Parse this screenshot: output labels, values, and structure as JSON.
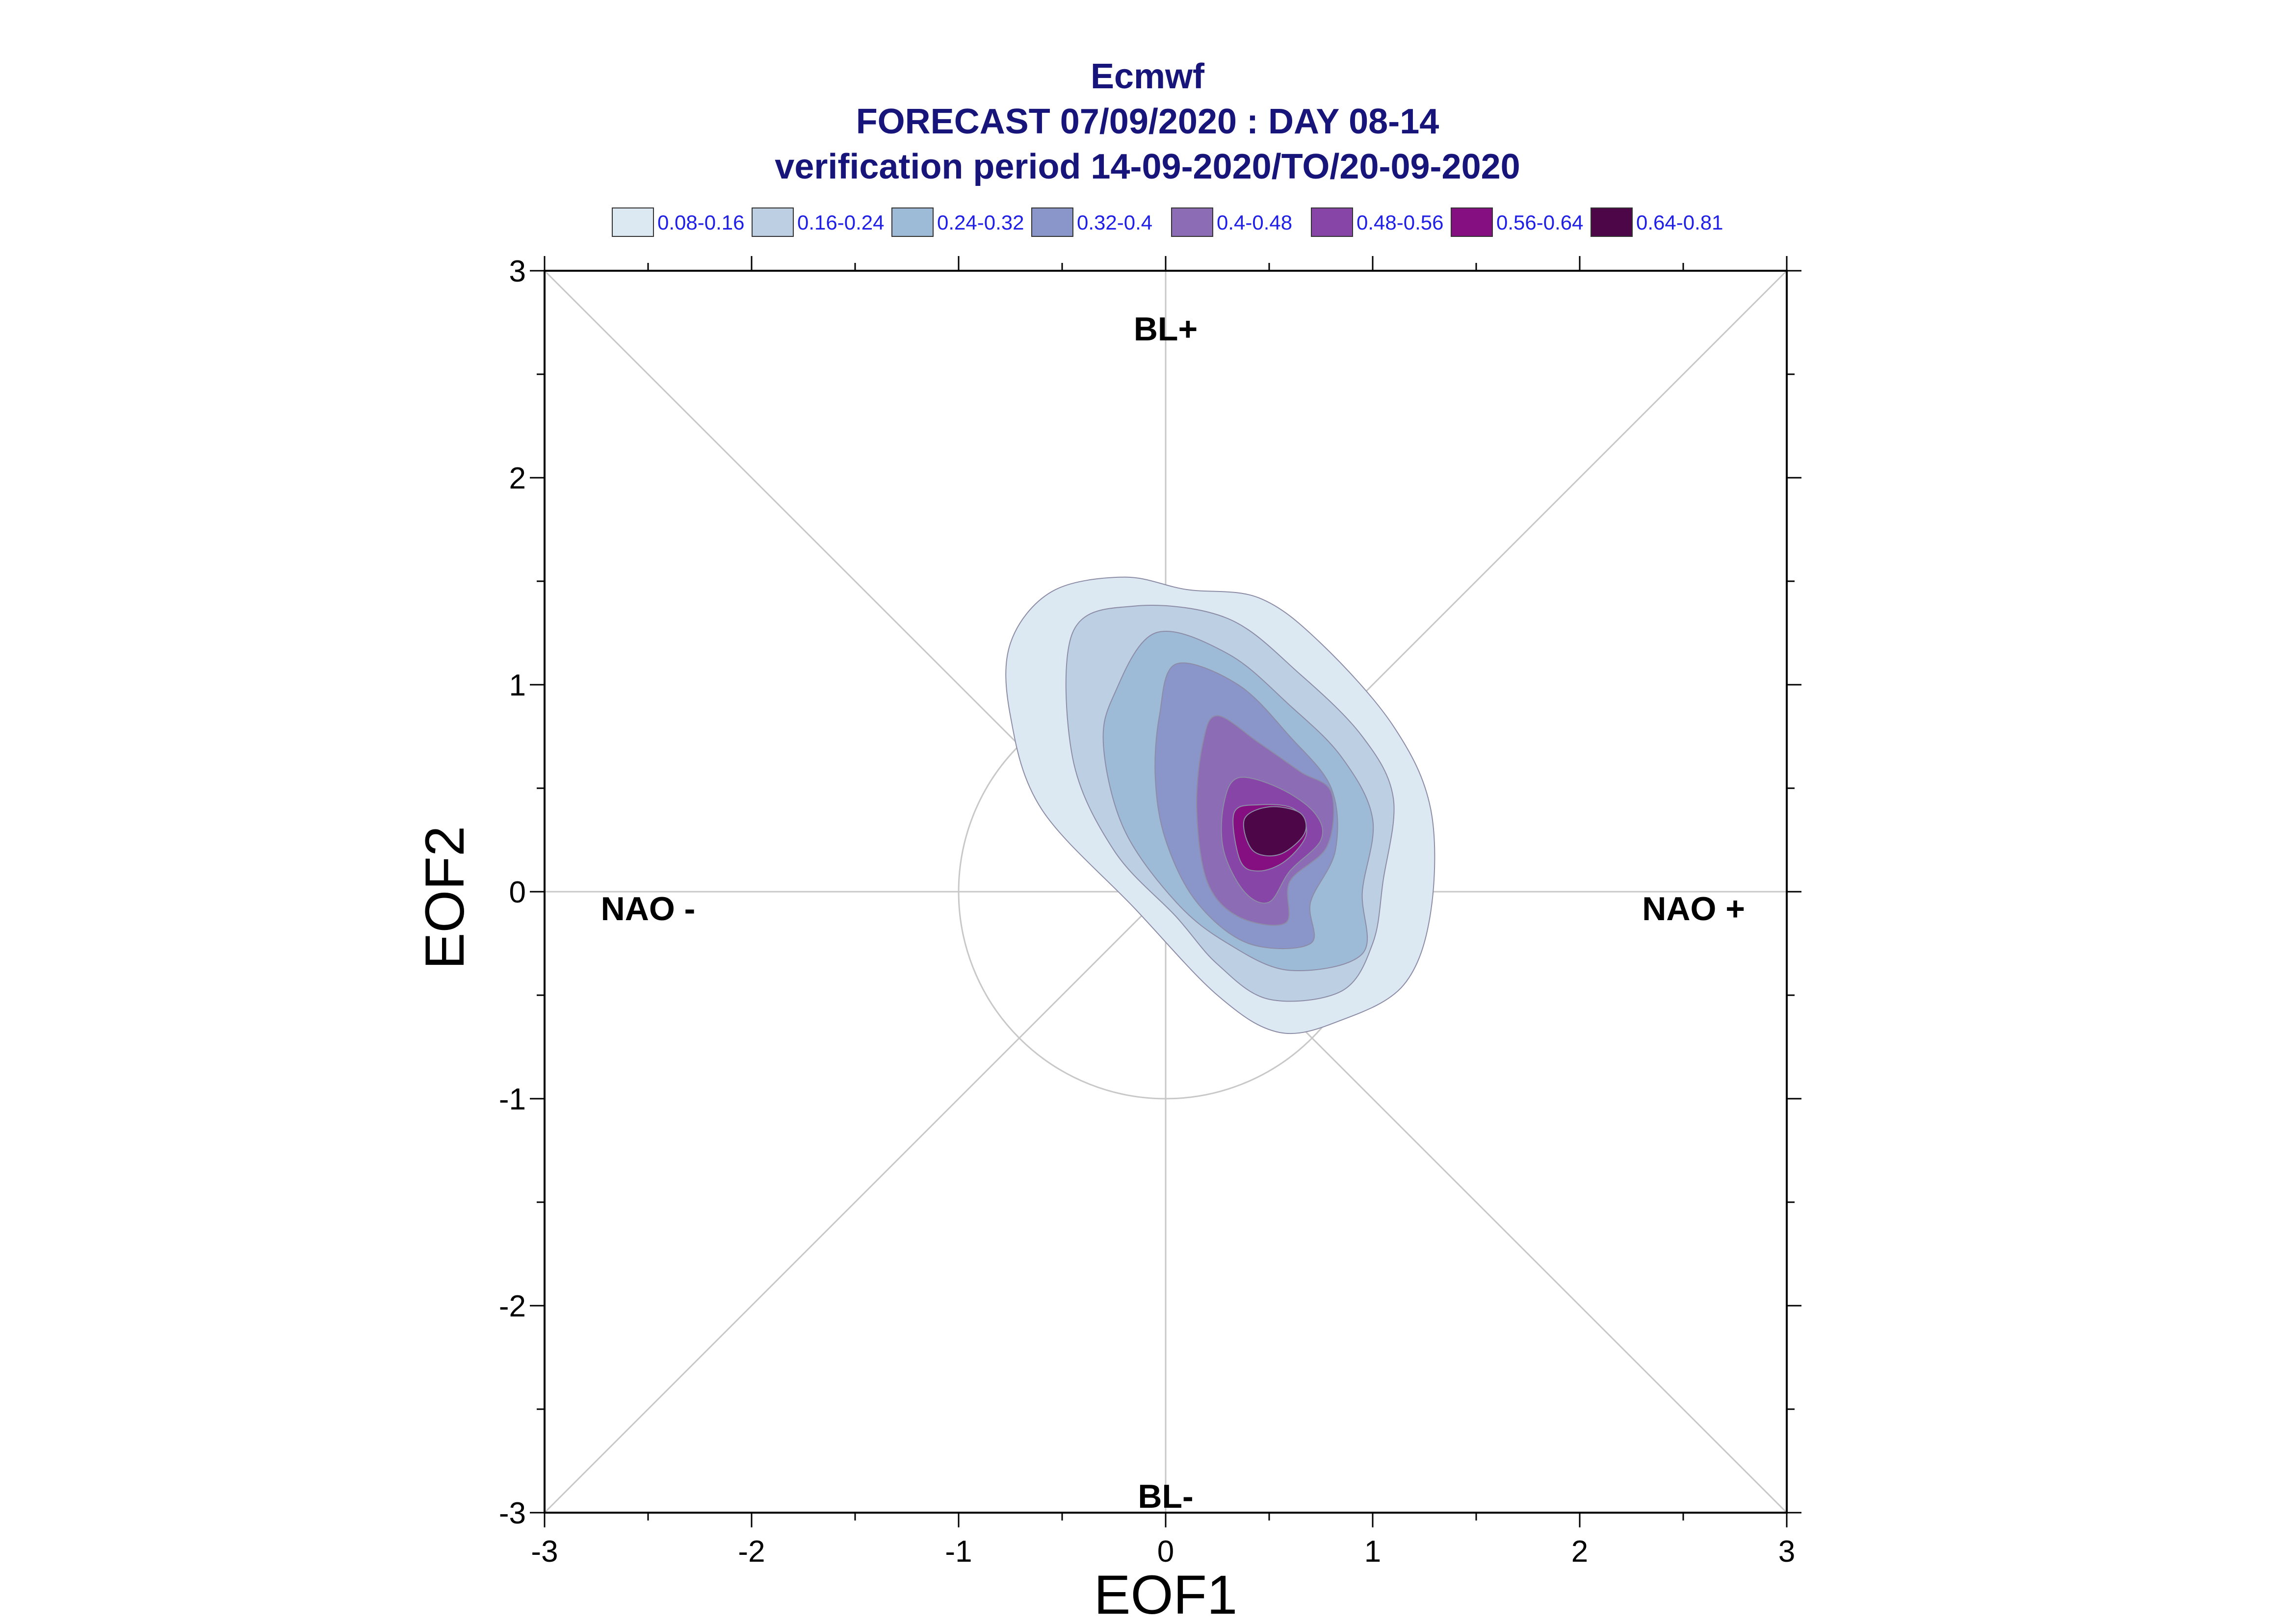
{
  "chart_data": {
    "type": "contour",
    "title": [
      "Ecmwf",
      "FORECAST 07/09/2020 : DAY 08-14",
      "verification period 14-09-2020/TO/20-09-2020"
    ],
    "xlabel": "EOF1",
    "ylabel": "EOF2",
    "xlim": [
      -3,
      3
    ],
    "ylim": [
      -3,
      3
    ],
    "xticks": [
      -3,
      -2,
      -1,
      0,
      1,
      2,
      3
    ],
    "yticks": [
      -3,
      -2,
      -1,
      0,
      1,
      2,
      3
    ],
    "grid": "diagonals, axes through origin, unit circle",
    "legend_position": "top",
    "regime_labels": [
      {
        "text": "BL+",
        "x": 0.0,
        "y": 2.72
      },
      {
        "text": "BL-",
        "x": 0.0,
        "y": -2.92
      },
      {
        "text": "NAO -",
        "x": -2.5,
        "y": -0.08
      },
      {
        "text": "NAO +",
        "x": 2.55,
        "y": -0.08
      }
    ],
    "levels": [
      {
        "label": "0.08-0.16",
        "color": "#dde9f2"
      },
      {
        "label": "0.16-0.24",
        "color": "#bdd0e3"
      },
      {
        "label": "0.24-0.32",
        "color": "#9dbad7"
      },
      {
        "label": "0.32-0.4",
        "color": "#8a95c9"
      },
      {
        "label": "0.4-0.48",
        "color": "#8c6db5"
      },
      {
        "label": "0.48-0.56",
        "color": "#8745a7"
      },
      {
        "label": "0.56-0.64",
        "color": "#850f80"
      },
      {
        "label": "0.64-0.81",
        "color": "#4d0748"
      }
    ],
    "contours": [
      [
        [
          -0.75,
          1.2
        ],
        [
          -0.55,
          1.45
        ],
        [
          -0.2,
          1.52
        ],
        [
          0.1,
          1.46
        ],
        [
          0.45,
          1.42
        ],
        [
          0.75,
          1.2
        ],
        [
          1.1,
          0.8
        ],
        [
          1.28,
          0.4
        ],
        [
          1.28,
          -0.1
        ],
        [
          1.15,
          -0.45
        ],
        [
          0.85,
          -0.62
        ],
        [
          0.55,
          -0.68
        ],
        [
          0.25,
          -0.5
        ],
        [
          -0.15,
          -0.08
        ],
        [
          -0.6,
          0.4
        ],
        [
          -0.75,
          0.85
        ]
      ],
      [
        [
          -0.45,
          1.25
        ],
        [
          -0.15,
          1.38
        ],
        [
          0.3,
          1.32
        ],
        [
          0.65,
          1.05
        ],
        [
          0.95,
          0.75
        ],
        [
          1.1,
          0.45
        ],
        [
          1.05,
          0.05
        ],
        [
          1.0,
          -0.25
        ],
        [
          0.85,
          -0.48
        ],
        [
          0.5,
          -0.52
        ],
        [
          0.25,
          -0.35
        ],
        [
          0.05,
          -0.12
        ],
        [
          -0.25,
          0.2
        ],
        [
          -0.45,
          0.65
        ]
      ],
      [
        [
          -0.25,
          0.95
        ],
        [
          -0.05,
          1.25
        ],
        [
          0.3,
          1.15
        ],
        [
          0.6,
          0.9
        ],
        [
          0.85,
          0.65
        ],
        [
          1.0,
          0.35
        ],
        [
          0.95,
          0.0
        ],
        [
          0.95,
          -0.3
        ],
        [
          0.6,
          -0.38
        ],
        [
          0.3,
          -0.25
        ],
        [
          0.05,
          -0.05
        ],
        [
          -0.2,
          0.3
        ],
        [
          -0.3,
          0.7
        ]
      ],
      [
        [
          -0.03,
          0.85
        ],
        [
          0.05,
          1.1
        ],
        [
          0.35,
          1.0
        ],
        [
          0.6,
          0.75
        ],
        [
          0.8,
          0.5
        ],
        [
          0.82,
          0.2
        ],
        [
          0.7,
          -0.05
        ],
        [
          0.7,
          -0.25
        ],
        [
          0.4,
          -0.25
        ],
        [
          0.15,
          -0.05
        ],
        [
          0.0,
          0.25
        ],
        [
          -0.05,
          0.55
        ]
      ],
      [
        [
          0.18,
          0.72
        ],
        [
          0.25,
          0.85
        ],
        [
          0.45,
          0.72
        ],
        [
          0.65,
          0.58
        ],
        [
          0.8,
          0.48
        ],
        [
          0.78,
          0.22
        ],
        [
          0.6,
          0.05
        ],
        [
          0.58,
          -0.15
        ],
        [
          0.35,
          -0.12
        ],
        [
          0.2,
          0.05
        ],
        [
          0.15,
          0.4
        ]
      ],
      [
        [
          0.28,
          0.42
        ],
        [
          0.35,
          0.55
        ],
        [
          0.55,
          0.5
        ],
        [
          0.72,
          0.38
        ],
        [
          0.75,
          0.25
        ],
        [
          0.6,
          0.1
        ],
        [
          0.5,
          -0.05
        ],
        [
          0.38,
          0.0
        ],
        [
          0.28,
          0.2
        ]
      ],
      [
        [
          0.33,
          0.38
        ],
        [
          0.45,
          0.42
        ],
        [
          0.62,
          0.4
        ],
        [
          0.68,
          0.28
        ],
        [
          0.58,
          0.15
        ],
        [
          0.45,
          0.1
        ],
        [
          0.36,
          0.15
        ]
      ],
      [
        [
          0.38,
          0.35
        ],
        [
          0.5,
          0.41
        ],
        [
          0.65,
          0.38
        ],
        [
          0.67,
          0.28
        ],
        [
          0.55,
          0.18
        ],
        [
          0.42,
          0.2
        ]
      ]
    ]
  }
}
